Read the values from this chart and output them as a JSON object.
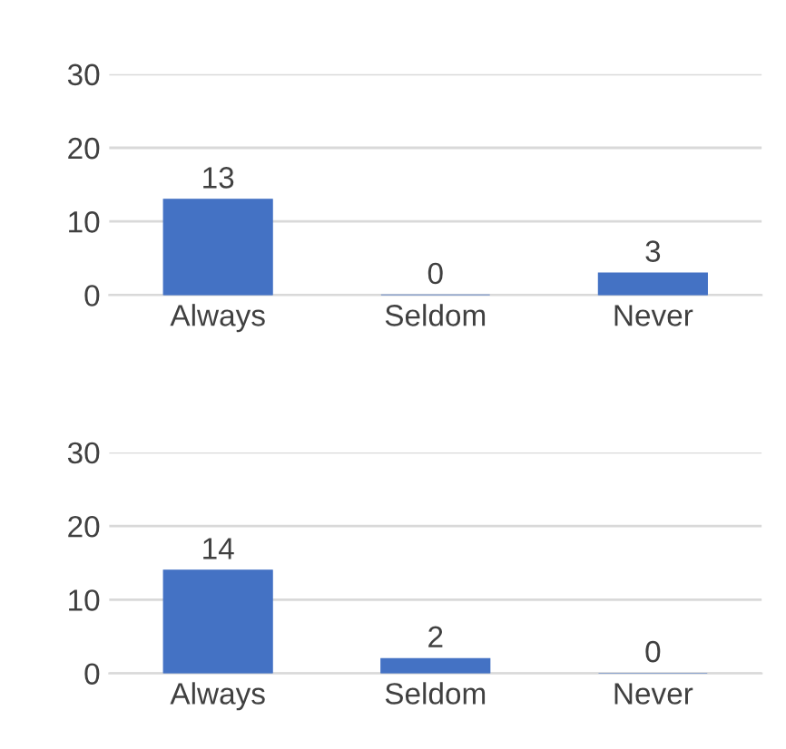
{
  "chart_data": [
    {
      "type": "bar",
      "categories": [
        "Always",
        "Seldom",
        "Never"
      ],
      "values": [
        13,
        0,
        3
      ],
      "color": "#4472c4",
      "ylim": [
        0,
        30
      ],
      "yticks": [
        0,
        10,
        20,
        30
      ],
      "grid": "y",
      "data_labels": true
    },
    {
      "type": "bar",
      "categories": [
        "Always",
        "Seldom",
        "Never"
      ],
      "values": [
        14,
        2,
        0
      ],
      "color": "#4472c4",
      "ylim": [
        0,
        30
      ],
      "yticks": [
        0,
        10,
        20,
        30
      ],
      "grid": "y",
      "data_labels": true
    }
  ]
}
